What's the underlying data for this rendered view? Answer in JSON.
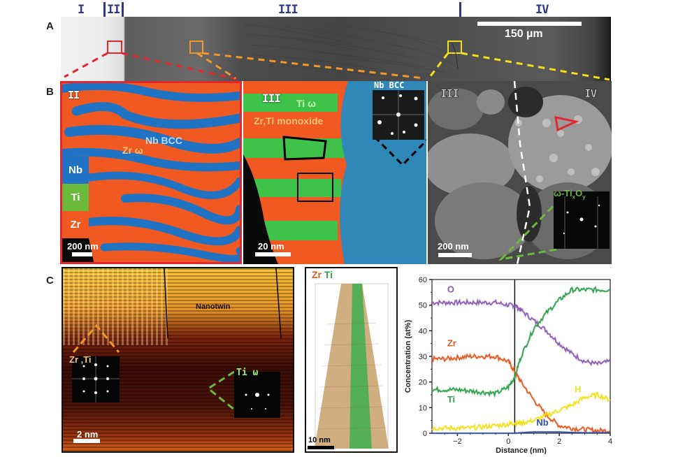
{
  "figure": {
    "panel_labels": {
      "A": "A",
      "B": "B",
      "C": "C"
    },
    "zones": {
      "I": "I",
      "II": "II",
      "III": "III",
      "IV": "IV"
    },
    "panel_a": {
      "scale_bar": "150 µm",
      "callout_colors": {
        "red": "#e0282e",
        "orange": "#f0962a",
        "yellow": "#f2e01a"
      }
    },
    "panel_b1": {
      "zone": "II",
      "labels": {
        "nb_bcc": "Nb BCC",
        "zr_omega": "Zr ω"
      },
      "legend": [
        {
          "label": "Nb",
          "color": "#1f73c2"
        },
        {
          "label": "Ti",
          "color": "#6cba3c"
        },
        {
          "label": "Zr",
          "color": "#f05a22"
        }
      ],
      "scale_bar": "200 nm",
      "border_color": "#e0282e"
    },
    "panel_b2": {
      "zone": "III",
      "labels": {
        "ti_omega": "Ti ω",
        "monoxide": "Zr,Ti monoxide",
        "fft": "Nb  BCC"
      },
      "scale_bar": "20 nm"
    },
    "panel_b3": {
      "zones": {
        "left": "III",
        "right": "IV"
      },
      "fft_label": "ω-TixOy",
      "fft_label_parts": {
        "omega": "ω-Ti",
        "x": "x",
        "O": "O",
        "y": "y"
      },
      "scale_bar": "200 nm"
    },
    "panel_c1": {
      "label_nanotwin": "Nanotwin",
      "fft_left": "Zr ,Ti",
      "fft_right": "Ti  ω",
      "scale_bar": "2 nm"
    },
    "panel_c2": {
      "legend": {
        "zr": "Zr",
        "ti": "Ti"
      },
      "scale_bar": "10 nm"
    }
  },
  "chart_data": {
    "type": "line",
    "title": "",
    "xlabel": "Distance (nm)",
    "ylabel": "Concentration (at%)",
    "xlim": [
      -3,
      4
    ],
    "ylim": [
      0,
      60
    ],
    "xticks": [
      -2,
      0,
      2,
      4
    ],
    "xtick_labels": [
      "−2",
      "0",
      "2",
      "4"
    ],
    "yticks": [
      0,
      10,
      20,
      30,
      40,
      50,
      60
    ],
    "grid": false,
    "interface_line_x": 0.25,
    "legend_position": "inline labels",
    "x": [
      -3,
      -2.5,
      -2,
      -1.5,
      -1,
      -0.5,
      0,
      0.25,
      0.5,
      1,
      1.5,
      2,
      2.5,
      3,
      3.5,
      4
    ],
    "series": [
      {
        "name": "O",
        "color": "#8a5bb5",
        "label_pos": [
          -2.4,
          55
        ],
        "values": [
          51,
          51,
          51,
          51,
          51,
          51,
          50,
          50,
          48,
          44,
          40,
          35,
          31,
          28,
          27,
          28
        ]
      },
      {
        "name": "Zr",
        "color": "#e3561e",
        "label_pos": [
          -2.4,
          34
        ],
        "values": [
          29,
          29,
          29.5,
          30,
          30,
          30,
          28,
          24,
          20,
          13,
          7,
          3,
          2,
          1.5,
          1,
          1
        ]
      },
      {
        "name": "Ti",
        "color": "#2ca048",
        "label_pos": [
          -2.4,
          12
        ],
        "values": [
          17,
          17,
          17,
          16.5,
          16,
          15.5,
          18,
          22,
          30,
          41,
          47,
          52,
          56,
          56,
          56,
          56
        ]
      },
      {
        "name": "H",
        "color": "#f2e01a",
        "label_pos": [
          2.6,
          16
        ],
        "values": [
          2,
          2,
          2,
          2,
          2.5,
          3,
          3.5,
          4,
          4,
          5,
          7,
          9,
          11,
          14,
          15,
          13
        ]
      },
      {
        "name": "Nb",
        "color": "#2e4fa0",
        "label_pos": [
          1.1,
          3
        ],
        "values": [
          0,
          0,
          0,
          0,
          0,
          0,
          0,
          0,
          0.2,
          0.5,
          0.5,
          0.5,
          0.3,
          0.2,
          0.2,
          0.2
        ]
      }
    ]
  }
}
